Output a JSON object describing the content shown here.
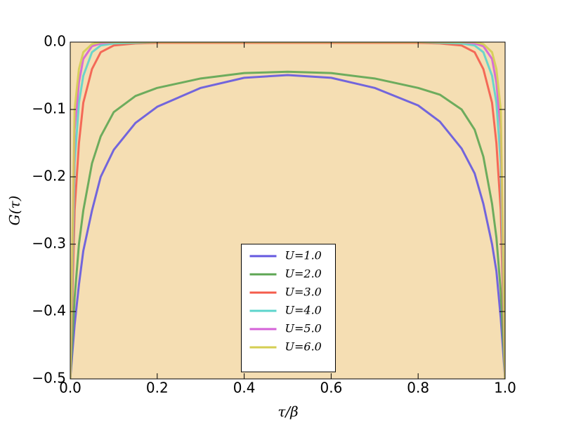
{
  "chart_data": {
    "type": "line",
    "xlabel": "τ/β",
    "ylabel": "G(τ)",
    "x": [
      0,
      0.01,
      0.02,
      0.03,
      0.05,
      0.07,
      0.1,
      0.15,
      0.2,
      0.3,
      0.4,
      0.5,
      0.6,
      0.7,
      0.8,
      0.85,
      0.9,
      0.93,
      0.95,
      0.97,
      0.98,
      0.99,
      1.0
    ],
    "series": [
      {
        "name": "U=1.0",
        "color": "#6458e0",
        "values": [
          -0.5,
          -0.42,
          -0.36,
          -0.31,
          -0.25,
          -0.2,
          -0.16,
          -0.12,
          -0.096,
          -0.068,
          -0.053,
          -0.049,
          -0.053,
          -0.068,
          -0.094,
          -0.118,
          -0.158,
          -0.195,
          -0.24,
          -0.3,
          -0.34,
          -0.41,
          -0.5
        ]
      },
      {
        "name": "U=2.0",
        "color": "#5ea653",
        "values": [
          -0.5,
          -0.38,
          -0.3,
          -0.25,
          -0.18,
          -0.14,
          -0.104,
          -0.08,
          -0.068,
          -0.054,
          -0.046,
          -0.044,
          -0.046,
          -0.054,
          -0.068,
          -0.078,
          -0.1,
          -0.13,
          -0.17,
          -0.24,
          -0.29,
          -0.37,
          -0.5
        ]
      },
      {
        "name": "U=3.0",
        "color": "#f45c4c",
        "values": [
          -0.5,
          -0.25,
          -0.15,
          -0.09,
          -0.04,
          -0.015,
          -0.005,
          -0.002,
          -0.001,
          -0.001,
          -0.001,
          -0.001,
          -0.001,
          -0.001,
          -0.001,
          -0.002,
          -0.005,
          -0.015,
          -0.04,
          -0.09,
          -0.15,
          -0.25,
          -0.5
        ]
      },
      {
        "name": "U=4.0",
        "color": "#5cd4cc",
        "values": [
          -0.5,
          -0.18,
          -0.09,
          -0.05,
          -0.015,
          -0.005,
          -0.002,
          -0.001,
          0,
          0,
          0,
          0,
          0,
          0,
          0,
          -0.001,
          -0.002,
          -0.005,
          -0.015,
          -0.05,
          -0.09,
          -0.18,
          -0.5
        ]
      },
      {
        "name": "U=5.0",
        "color": "#d462d8",
        "values": [
          -0.5,
          -0.13,
          -0.06,
          -0.025,
          -0.006,
          -0.002,
          0,
          0,
          0,
          0,
          0,
          0,
          0,
          0,
          0,
          0,
          0,
          -0.002,
          -0.006,
          -0.025,
          -0.06,
          -0.13,
          -0.5
        ]
      },
      {
        "name": "U=6.0",
        "color": "#d4ce52",
        "values": [
          -0.5,
          -0.1,
          -0.04,
          -0.015,
          -0.003,
          0,
          0,
          0,
          0,
          0,
          0,
          0,
          0,
          0,
          0,
          0,
          0,
          0,
          -0.003,
          -0.015,
          -0.04,
          -0.1,
          -0.5
        ]
      }
    ],
    "xlim": [
      0,
      1
    ],
    "ylim": [
      -0.5,
      0
    ],
    "xticks": [
      {
        "value": 0,
        "label": "0.0"
      },
      {
        "value": 0.2,
        "label": "0.2"
      },
      {
        "value": 0.4,
        "label": "0.4"
      },
      {
        "value": 0.6,
        "label": "0.6"
      },
      {
        "value": 0.8,
        "label": "0.8"
      },
      {
        "value": 1.0,
        "label": "1.0"
      }
    ],
    "yticks": [
      {
        "value": -0.5,
        "label": "−0.5"
      },
      {
        "value": -0.4,
        "label": "−0.4"
      },
      {
        "value": -0.3,
        "label": "−0.3"
      },
      {
        "value": -0.2,
        "label": "−0.2"
      },
      {
        "value": -0.1,
        "label": "−0.1"
      },
      {
        "value": 0,
        "label": "0.0"
      }
    ],
    "background": "#f5deb3",
    "legend": "lower center"
  }
}
